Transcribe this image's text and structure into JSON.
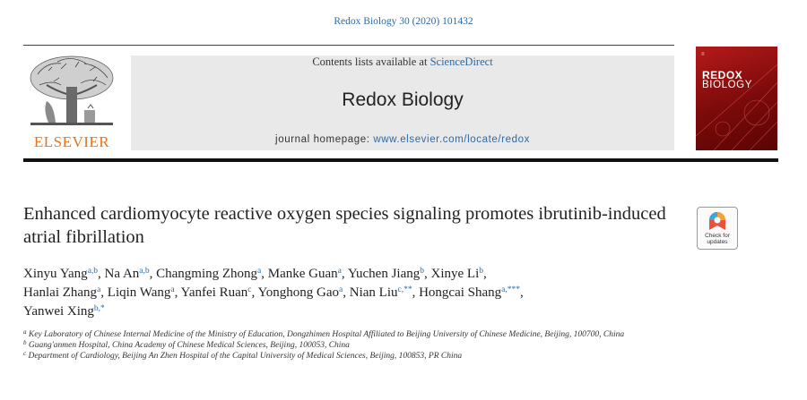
{
  "journal_reference": "Redox Biology 30 (2020) 101432",
  "banner": {
    "contents_prefix": "Contents lists available at ",
    "contents_link": "ScienceDirect",
    "journal_title": "Redox Biology",
    "homepage_prefix": "journal homepage: ",
    "homepage_url": "www.elsevier.com/locate/redox"
  },
  "publisher_logo_text": "ELSEVIER",
  "cover": {
    "line1": "REDOX",
    "line2": "BIOLOGY"
  },
  "check_updates": {
    "line1": "Check for",
    "line2": "updates"
  },
  "article": {
    "title": "Enhanced cardiomyocyte reactive oxygen species signaling promotes ibrutinib-induced atrial fibrillation",
    "authors": [
      {
        "name": "Xinyu Yang",
        "sup": "a,b"
      },
      {
        "name": "Na An",
        "sup": "a,b"
      },
      {
        "name": "Changming Zhong",
        "sup": "a"
      },
      {
        "name": "Manke Guan",
        "sup": "a"
      },
      {
        "name": "Yuchen Jiang",
        "sup": "b"
      },
      {
        "name": "Xinye Li",
        "sup": "b"
      },
      {
        "name": "Hanlai Zhang",
        "sup": "a"
      },
      {
        "name": "Liqin Wang",
        "sup": "a"
      },
      {
        "name": "Yanfei Ruan",
        "sup": "c"
      },
      {
        "name": "Yonghong Gao",
        "sup": "a"
      },
      {
        "name": "Nian Liu",
        "sup": "c,**"
      },
      {
        "name": "Hongcai Shang",
        "sup": "a,***"
      },
      {
        "name": "Yanwei Xing",
        "sup": "b,*"
      }
    ],
    "affiliations": [
      {
        "mark": "a",
        "text": "Key Laboratory of Chinese Internal Medicine of the Ministry of Education, Dongzhimen Hospital Affiliated to Beijing University of Chinese Medicine, Beijing, 100700, China"
      },
      {
        "mark": "b",
        "text": "Guang'anmen Hospital, China Academy of Chinese Medical Sciences, Beijing, 100053, China"
      },
      {
        "mark": "c",
        "text": "Department of Cardiology, Beijing An Zhen Hospital of the Capital University of Medical Sciences, Beijing, 100853, PR China"
      }
    ]
  },
  "colors": {
    "link": "#2b6aa6",
    "elsevier_orange": "#e6741a",
    "cover_red": "#b51a1a"
  }
}
